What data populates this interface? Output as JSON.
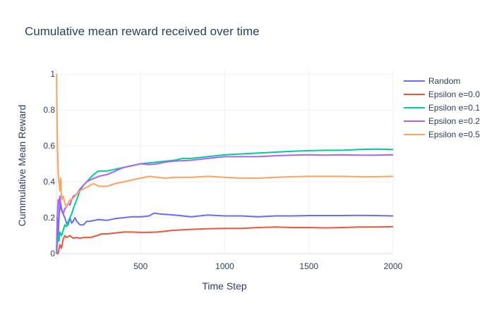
{
  "chart_data": {
    "type": "line",
    "title": "Cumulative mean reward received over time",
    "xlabel": "Time Step",
    "ylabel": "Cummulative Mean Reward",
    "xlim": [
      0,
      2000
    ],
    "ylim": [
      0,
      1.02
    ],
    "xticks": [
      500,
      1000,
      1500,
      2000
    ],
    "yticks": [
      0,
      0.2,
      0.4,
      0.6,
      0.8,
      1
    ],
    "ytick_labels": [
      "0",
      "0.2",
      "0.4",
      "0.6",
      "0.8",
      "1"
    ],
    "xtick_labels": [
      "500",
      "1000",
      "1500",
      "2000"
    ],
    "grid": true,
    "legend_position": "right",
    "series": [
      {
        "name": "Random",
        "color": "#636efa",
        "points": [
          [
            1,
            0.0
          ],
          [
            5,
            0.2
          ],
          [
            10,
            0.1
          ],
          [
            15,
            0.2
          ],
          [
            20,
            0.3
          ],
          [
            25,
            0.28
          ],
          [
            30,
            0.25
          ],
          [
            40,
            0.22
          ],
          [
            50,
            0.2
          ],
          [
            60,
            0.17
          ],
          [
            70,
            0.16
          ],
          [
            80,
            0.2
          ],
          [
            90,
            0.17
          ],
          [
            100,
            0.18
          ],
          [
            110,
            0.2
          ],
          [
            120,
            0.18
          ],
          [
            140,
            0.16
          ],
          [
            160,
            0.16
          ],
          [
            180,
            0.18
          ],
          [
            200,
            0.18
          ],
          [
            250,
            0.19
          ],
          [
            300,
            0.185
          ],
          [
            350,
            0.195
          ],
          [
            400,
            0.2
          ],
          [
            450,
            0.205
          ],
          [
            500,
            0.205
          ],
          [
            550,
            0.21
          ],
          [
            580,
            0.225
          ],
          [
            620,
            0.22
          ],
          [
            700,
            0.215
          ],
          [
            800,
            0.205
          ],
          [
            900,
            0.215
          ],
          [
            1000,
            0.21
          ],
          [
            1100,
            0.21
          ],
          [
            1200,
            0.205
          ],
          [
            1300,
            0.21
          ],
          [
            1400,
            0.21
          ],
          [
            1500,
            0.212
          ],
          [
            1600,
            0.212
          ],
          [
            1700,
            0.212
          ],
          [
            1800,
            0.213
          ],
          [
            1900,
            0.212
          ],
          [
            2000,
            0.21
          ]
        ]
      },
      {
        "name": "Epsilon e=0.0",
        "color": "#ef553b",
        "points": [
          [
            1,
            0.0
          ],
          [
            10,
            0.0
          ],
          [
            20,
            0.05
          ],
          [
            30,
            0.03
          ],
          [
            40,
            0.08
          ],
          [
            50,
            0.1
          ],
          [
            60,
            0.09
          ],
          [
            80,
            0.1
          ],
          [
            100,
            0.085
          ],
          [
            120,
            0.09
          ],
          [
            140,
            0.085
          ],
          [
            160,
            0.09
          ],
          [
            200,
            0.09
          ],
          [
            240,
            0.1
          ],
          [
            270,
            0.11
          ],
          [
            300,
            0.11
          ],
          [
            350,
            0.115
          ],
          [
            400,
            0.12
          ],
          [
            450,
            0.12
          ],
          [
            500,
            0.118
          ],
          [
            550,
            0.118
          ],
          [
            600,
            0.12
          ],
          [
            650,
            0.125
          ],
          [
            700,
            0.13
          ],
          [
            800,
            0.135
          ],
          [
            900,
            0.138
          ],
          [
            1000,
            0.14
          ],
          [
            1100,
            0.14
          ],
          [
            1200,
            0.145
          ],
          [
            1300,
            0.148
          ],
          [
            1400,
            0.145
          ],
          [
            1500,
            0.145
          ],
          [
            1600,
            0.143
          ],
          [
            1700,
            0.145
          ],
          [
            1800,
            0.148
          ],
          [
            1900,
            0.148
          ],
          [
            2000,
            0.15
          ]
        ]
      },
      {
        "name": "Epsilon e=0.1",
        "color": "#00cc96",
        "points": [
          [
            1,
            0.0
          ],
          [
            5,
            0.05
          ],
          [
            10,
            0.1
          ],
          [
            15,
            0.07
          ],
          [
            20,
            0.12
          ],
          [
            30,
            0.1
          ],
          [
            40,
            0.13
          ],
          [
            50,
            0.16
          ],
          [
            60,
            0.15
          ],
          [
            70,
            0.18
          ],
          [
            80,
            0.2
          ],
          [
            90,
            0.22
          ],
          [
            100,
            0.25
          ],
          [
            120,
            0.3
          ],
          [
            140,
            0.35
          ],
          [
            160,
            0.38
          ],
          [
            180,
            0.4
          ],
          [
            200,
            0.42
          ],
          [
            220,
            0.44
          ],
          [
            250,
            0.46
          ],
          [
            300,
            0.46
          ],
          [
            350,
            0.47
          ],
          [
            400,
            0.48
          ],
          [
            450,
            0.49
          ],
          [
            500,
            0.5
          ],
          [
            550,
            0.505
          ],
          [
            600,
            0.51
          ],
          [
            650,
            0.515
          ],
          [
            700,
            0.52
          ],
          [
            750,
            0.53
          ],
          [
            800,
            0.53
          ],
          [
            850,
            0.535
          ],
          [
            900,
            0.54
          ],
          [
            1000,
            0.55
          ],
          [
            1100,
            0.555
          ],
          [
            1200,
            0.56
          ],
          [
            1300,
            0.565
          ],
          [
            1400,
            0.57
          ],
          [
            1500,
            0.573
          ],
          [
            1600,
            0.575
          ],
          [
            1700,
            0.575
          ],
          [
            1800,
            0.58
          ],
          [
            1900,
            0.582
          ],
          [
            2000,
            0.58
          ]
        ]
      },
      {
        "name": "Epsilon e=0.2",
        "color": "#ab63fa",
        "points": [
          [
            1,
            0.0
          ],
          [
            5,
            0.2
          ],
          [
            10,
            0.3
          ],
          [
            15,
            0.28
          ],
          [
            20,
            0.32
          ],
          [
            25,
            0.25
          ],
          [
            30,
            0.24
          ],
          [
            40,
            0.22
          ],
          [
            50,
            0.25
          ],
          [
            60,
            0.26
          ],
          [
            70,
            0.28
          ],
          [
            80,
            0.27
          ],
          [
            90,
            0.3
          ],
          [
            100,
            0.32
          ],
          [
            120,
            0.33
          ],
          [
            140,
            0.36
          ],
          [
            160,
            0.38
          ],
          [
            180,
            0.4
          ],
          [
            200,
            0.41
          ],
          [
            250,
            0.43
          ],
          [
            300,
            0.44
          ],
          [
            350,
            0.46
          ],
          [
            400,
            0.48
          ],
          [
            450,
            0.49
          ],
          [
            500,
            0.5
          ],
          [
            550,
            0.495
          ],
          [
            600,
            0.5
          ],
          [
            650,
            0.51
          ],
          [
            700,
            0.515
          ],
          [
            800,
            0.52
          ],
          [
            900,
            0.53
          ],
          [
            1000,
            0.54
          ],
          [
            1100,
            0.54
          ],
          [
            1200,
            0.54
          ],
          [
            1300,
            0.545
          ],
          [
            1400,
            0.548
          ],
          [
            1500,
            0.55
          ],
          [
            1600,
            0.548
          ],
          [
            1700,
            0.55
          ],
          [
            1800,
            0.548
          ],
          [
            1900,
            0.548
          ],
          [
            2000,
            0.55
          ]
        ]
      },
      {
        "name": "Epsilon e=0.5",
        "color": "#ffa15a",
        "points": [
          [
            1,
            1.0
          ],
          [
            3,
            0.8
          ],
          [
            6,
            0.6
          ],
          [
            10,
            0.45
          ],
          [
            15,
            0.4
          ],
          [
            20,
            0.35
          ],
          [
            25,
            0.42
          ],
          [
            30,
            0.3
          ],
          [
            40,
            0.32
          ],
          [
            50,
            0.28
          ],
          [
            60,
            0.26
          ],
          [
            70,
            0.28
          ],
          [
            80,
            0.3
          ],
          [
            90,
            0.3
          ],
          [
            100,
            0.31
          ],
          [
            120,
            0.33
          ],
          [
            140,
            0.35
          ],
          [
            160,
            0.36
          ],
          [
            180,
            0.37
          ],
          [
            200,
            0.38
          ],
          [
            220,
            0.39
          ],
          [
            250,
            0.375
          ],
          [
            300,
            0.375
          ],
          [
            350,
            0.39
          ],
          [
            400,
            0.4
          ],
          [
            450,
            0.41
          ],
          [
            500,
            0.42
          ],
          [
            550,
            0.43
          ],
          [
            600,
            0.425
          ],
          [
            650,
            0.42
          ],
          [
            700,
            0.425
          ],
          [
            800,
            0.425
          ],
          [
            900,
            0.43
          ],
          [
            1000,
            0.425
          ],
          [
            1100,
            0.42
          ],
          [
            1200,
            0.42
          ],
          [
            1300,
            0.425
          ],
          [
            1400,
            0.428
          ],
          [
            1500,
            0.43
          ],
          [
            1600,
            0.43
          ],
          [
            1700,
            0.43
          ],
          [
            1800,
            0.428
          ],
          [
            1900,
            0.428
          ],
          [
            2000,
            0.43
          ]
        ]
      }
    ]
  }
}
